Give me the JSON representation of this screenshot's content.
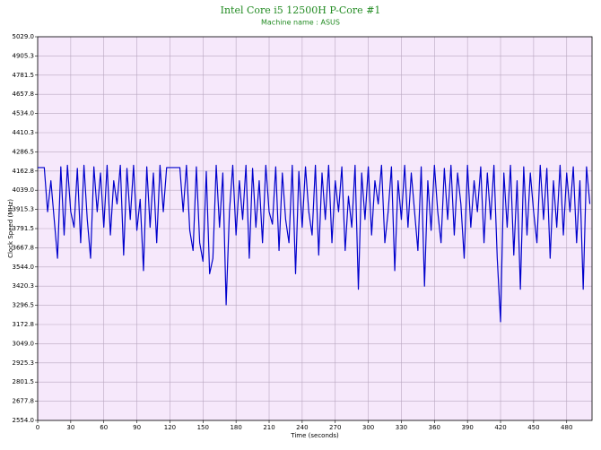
{
  "chart_data": {
    "type": "line",
    "title": "Intel Core i5 12500H P-Core #1",
    "subtitle": "Machine name : ASUS",
    "xlabel": "Time (seconds)",
    "ylabel": "Clock Speed (MHz)",
    "xlim": [
      0,
      503
    ],
    "xticks": [
      0,
      30,
      60,
      90,
      120,
      150,
      180,
      210,
      240,
      270,
      300,
      330,
      360,
      390,
      420,
      450,
      480
    ],
    "ylim": [
      2554,
      5029
    ],
    "yticks": [
      {
        "value": 2554,
        "label": "2554.0"
      },
      {
        "value": 2677.75,
        "label": "2677.8"
      },
      {
        "value": 2801.5,
        "label": "2801.5"
      },
      {
        "value": 2925.25,
        "label": "2925.3"
      },
      {
        "value": 3049,
        "label": "3049.0"
      },
      {
        "value": 3172.75,
        "label": "3172.8"
      },
      {
        "value": 3296.5,
        "label": "3296.5"
      },
      {
        "value": 3420.25,
        "label": "3420.3"
      },
      {
        "value": 3544,
        "label": "3544.0"
      },
      {
        "value": 3667.75,
        "label": "3667.8"
      },
      {
        "value": 3791.5,
        "label": "3791.5"
      },
      {
        "value": 3915.25,
        "label": "3915.3"
      },
      {
        "value": 4039,
        "label": "4039.0"
      },
      {
        "value": 4162.75,
        "label": "4162.8"
      },
      {
        "value": 4286.5,
        "label": "4286.5"
      },
      {
        "value": 4410.25,
        "label": "4410.3"
      },
      {
        "value": 4534,
        "label": "4534.0"
      },
      {
        "value": 4657.75,
        "label": "4657.8"
      },
      {
        "value": 4781.5,
        "label": "4781.5"
      },
      {
        "value": 4905.25,
        "label": "4905.3"
      },
      {
        "value": 5029,
        "label": "5029.0"
      }
    ],
    "grid": true,
    "x": [
      0,
      3,
      6,
      9,
      12,
      15,
      18,
      21,
      24,
      27,
      30,
      33,
      36,
      39,
      42,
      45,
      48,
      51,
      54,
      57,
      60,
      63,
      66,
      69,
      72,
      75,
      78,
      81,
      84,
      87,
      90,
      93,
      96,
      99,
      102,
      105,
      108,
      111,
      114,
      117,
      120,
      123,
      126,
      129,
      132,
      135,
      138,
      141,
      144,
      147,
      150,
      153,
      156,
      159,
      162,
      165,
      168,
      171,
      174,
      177,
      180,
      183,
      186,
      189,
      192,
      195,
      198,
      201,
      204,
      207,
      210,
      213,
      216,
      219,
      222,
      225,
      228,
      231,
      234,
      237,
      240,
      243,
      246,
      249,
      252,
      255,
      258,
      261,
      264,
      267,
      270,
      273,
      276,
      279,
      282,
      285,
      288,
      291,
      294,
      297,
      300,
      303,
      306,
      309,
      312,
      315,
      318,
      321,
      324,
      327,
      330,
      333,
      336,
      339,
      342,
      345,
      348,
      351,
      354,
      357,
      360,
      363,
      366,
      369,
      372,
      375,
      378,
      381,
      384,
      387,
      390,
      393,
      396,
      399,
      402,
      405,
      408,
      411,
      414,
      417,
      420,
      423,
      426,
      429,
      432,
      435,
      438,
      441,
      444,
      447,
      450,
      453,
      456,
      459,
      462,
      465,
      468,
      471,
      474,
      477,
      480,
      483,
      486,
      489,
      492,
      495,
      498,
      501
    ],
    "series": [
      {
        "color": "#0000cc",
        "values": [
          4185,
          4185,
          4185,
          3900,
          4100,
          3850,
          3600,
          4190,
          3750,
          4200,
          3900,
          3800,
          4180,
          3700,
          4200,
          3850,
          3600,
          4190,
          3900,
          4150,
          3800,
          4200,
          3750,
          4100,
          3950,
          4200,
          3620,
          4180,
          3850,
          4200,
          3780,
          3980,
          3520,
          4190,
          3800,
          4150,
          3700,
          4200,
          3900,
          4185,
          4185,
          4185,
          4185,
          4185,
          3900,
          4200,
          3780,
          3650,
          4190,
          3700,
          3580,
          4160,
          3500,
          3600,
          4200,
          3800,
          4150,
          3300,
          3900,
          4200,
          3750,
          4100,
          3850,
          4200,
          3600,
          4180,
          3800,
          4100,
          3700,
          4200,
          3900,
          3820,
          4190,
          3650,
          4150,
          3850,
          3700,
          4200,
          3500,
          4160,
          3800,
          4190,
          3900,
          3750,
          4200,
          3620,
          4150,
          3850,
          4200,
          3700,
          4100,
          3900,
          4190,
          3650,
          4000,
          3800,
          4200,
          3400,
          4150,
          3850,
          4190,
          3750,
          4100,
          3950,
          4200,
          3700,
          3900,
          4190,
          3520,
          4100,
          3850,
          4200,
          3800,
          4150,
          3900,
          3650,
          4190,
          3420,
          4100,
          3780,
          4200,
          3900,
          3700,
          4180,
          3850,
          4200,
          3750,
          4150,
          3950,
          3600,
          4200,
          3800,
          4100,
          3900,
          4190,
          3700,
          4150,
          3850,
          4200,
          3600,
          3190,
          4150,
          3800,
          4200,
          3620,
          4100,
          3400,
          4190,
          3750,
          4150,
          3900,
          3700,
          4200,
          3850,
          4180,
          3600,
          4100,
          3800,
          4200,
          3750,
          4150,
          3900,
          4190,
          3700,
          4100,
          3400,
          4190,
          3950
        ]
      }
    ]
  }
}
